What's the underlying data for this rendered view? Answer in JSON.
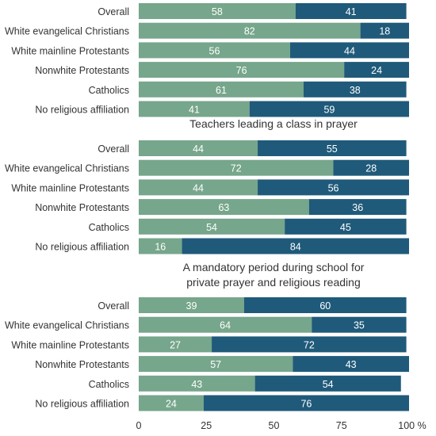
{
  "colors": {
    "support": "#76a68b",
    "oppose": "#1f5a7a",
    "label": "#333333",
    "bar_text": "#ffffff",
    "axis": "#333333"
  },
  "chart_data": {
    "type": "bar",
    "orientation": "horizontal",
    "stacked": true,
    "xlim": [
      0,
      100
    ],
    "xticks": [
      "0",
      "25",
      "50",
      "75",
      "100 %"
    ],
    "categories": [
      "Overall",
      "White evangelical Christians",
      "White mainline Protestants",
      "Nonwhite Protestants",
      "Catholics",
      "No religious affiliation"
    ],
    "panels": [
      {
        "title": "",
        "series": [
          {
            "values": [
              58,
              82,
              56,
              76,
              61,
              41
            ]
          },
          {
            "values": [
              41,
              18,
              44,
              24,
              38,
              59
            ]
          }
        ]
      },
      {
        "title": "Teachers leading a class in prayer",
        "series": [
          {
            "values": [
              44,
              72,
              44,
              63,
              54,
              16
            ]
          },
          {
            "values": [
              55,
              28,
              56,
              36,
              45,
              84
            ]
          }
        ]
      },
      {
        "title": "A mandatory period during school for private prayer and religious reading",
        "title_lines": [
          "A mandatory period during school for",
          "private prayer and religious reading"
        ],
        "series": [
          {
            "values": [
              39,
              64,
              27,
              57,
              43,
              24
            ]
          },
          {
            "values": [
              60,
              35,
              72,
              43,
              54,
              76
            ]
          }
        ]
      }
    ]
  }
}
